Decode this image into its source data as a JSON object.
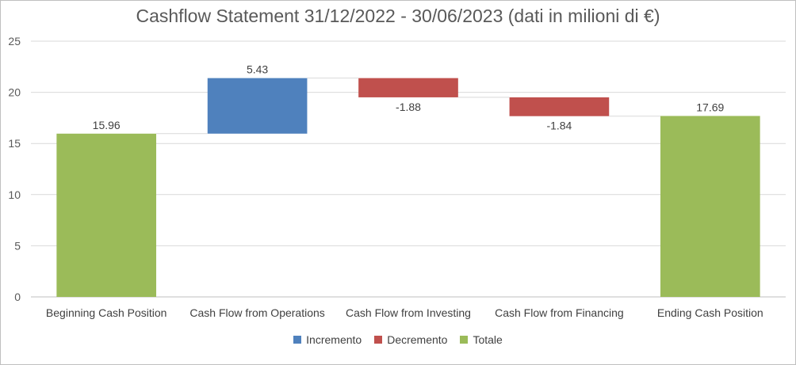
{
  "chart_data": {
    "type": "waterfall",
    "title": "Cashflow Statement 31/12/2022 - 30/06/2023 (dati in milioni di €)",
    "ylim": [
      0,
      25
    ],
    "yticks": [
      0,
      5,
      10,
      15,
      20,
      25
    ],
    "grid": true,
    "legend_position": "bottom",
    "categories": [
      "Beginning Cash Position",
      "Cash Flow from Operations",
      "Cash Flow from Investing",
      "Cash Flow from Financing",
      "Ending Cash Position"
    ],
    "values": [
      15.96,
      5.43,
      -1.88,
      -1.84,
      17.69
    ],
    "labels": [
      "15.96",
      "5.43",
      "-1.88",
      "-1.84",
      "17.69"
    ],
    "kinds": [
      "total",
      "increase",
      "decrease",
      "decrease",
      "total"
    ],
    "legend": [
      {
        "kind": "increase",
        "label": "Incremento",
        "color": "#4f81bd"
      },
      {
        "kind": "decrease",
        "label": "Decremento",
        "color": "#c0504d"
      },
      {
        "kind": "total",
        "label": "Totale",
        "color": "#9bbb59"
      }
    ]
  }
}
